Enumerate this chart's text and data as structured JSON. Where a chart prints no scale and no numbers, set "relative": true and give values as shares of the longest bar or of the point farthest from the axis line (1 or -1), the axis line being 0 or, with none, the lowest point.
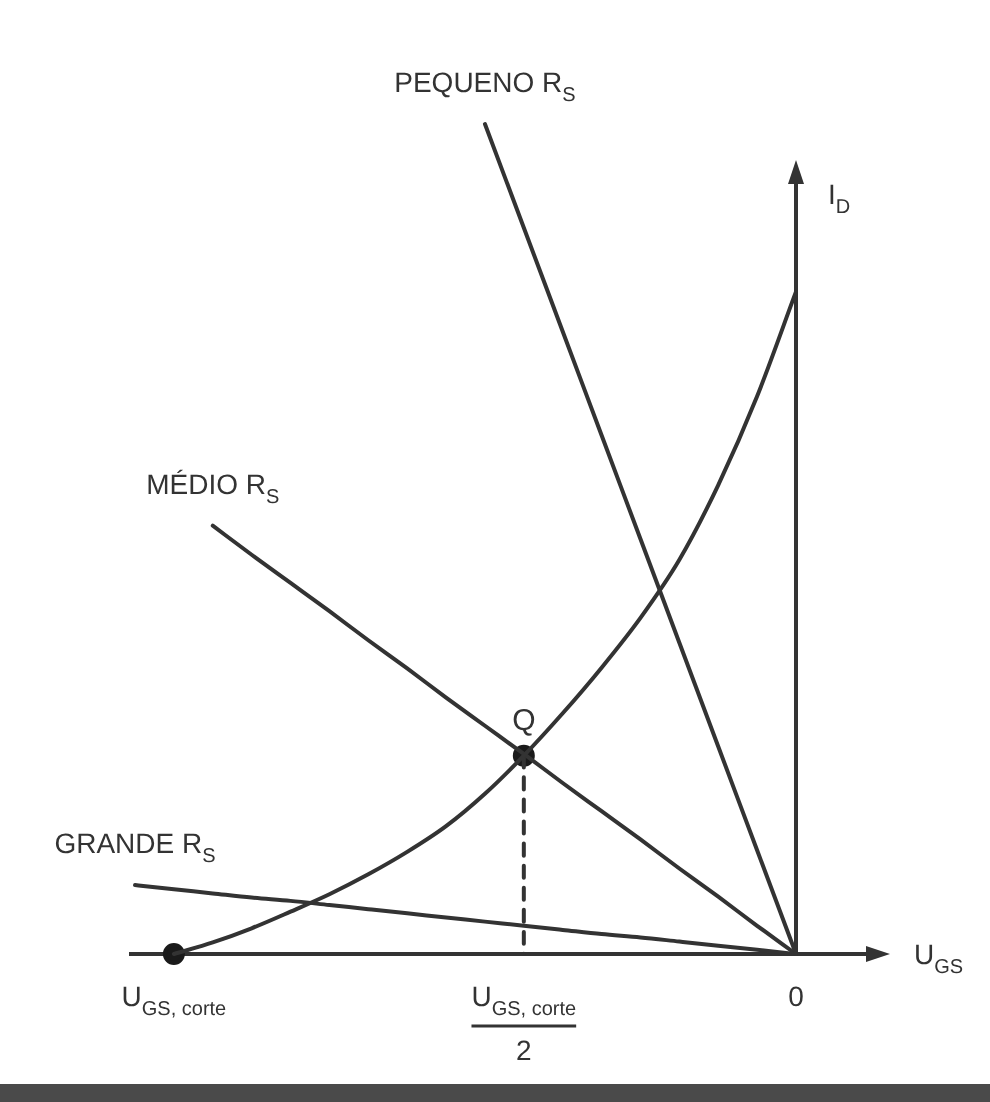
{
  "chart_data": {
    "type": "line",
    "relative": true,
    "xlabel": "U$_{GS}$",
    "ylabel": "I$_{D}$",
    "categories": [
      null,
      "U$_{GS, corte}$",
      null,
      null,
      null,
      null,
      null,
      null,
      null,
      null,
      "U$_{GS, corte}$\n2",
      null,
      null,
      null,
      null,
      null,
      null,
      "0"
    ],
    "series": [
      {
        "color": "#333333",
        "values": [
          null,
          0,
          0.014,
          0.031,
          0.051,
          0.072,
          0.096,
          0.123,
          0.154,
          0.193,
          0.239,
          0.29,
          0.345,
          0.405,
          0.475,
          0.565,
          0.672,
          0.798
        ]
      },
      {
        "name": "PEQUENO R$_{S}$",
        "color": "#333333",
        "values": [
          null,
          null,
          null,
          null,
          null,
          null,
          null,
          null,
          null,
          1,
          0.875,
          0.75,
          0.625,
          0.5,
          0.375,
          0.25,
          0.125,
          0
        ]
      },
      {
        "name": "MÉDIO R$_{S}$",
        "color": "#333333",
        "values": [
          null,
          null,
          0.516,
          0.481,
          0.447,
          0.413,
          0.378,
          0.344,
          0.309,
          0.275,
          0.241,
          0.206,
          0.172,
          0.138,
          0.103,
          0.069,
          0.034,
          0
        ]
      },
      {
        "name": "GRANDE R$_{S}$",
        "color": "#333333",
        "values": [
          0.083,
          0.078,
          0.073,
          0.068,
          0.064,
          0.059,
          0.054,
          0.049,
          0.044,
          0.039,
          0.034,
          0.029,
          0.024,
          0.02,
          0.015,
          0.01,
          0.005,
          0
        ]
      },
      {
        "line_style": "dashed",
        "color": "#333333",
        "x": [
          "U$_{GS, corte}$\n2",
          "U$_{GS, corte}$\n2"
        ],
        "values": [
          0.239,
          0
        ]
      },
      {
        "type": "scatter",
        "marker": "circle",
        "color": "#1a1a1a",
        "values": [
          null,
          0,
          null,
          null,
          null,
          null,
          null,
          null,
          null,
          null,
          0.239,
          null,
          null,
          null,
          null,
          null,
          null,
          null
        ]
      }
    ],
    "annotations": [
      {
        "text": "Q",
        "x": "U$_{GS, corte}$\n2",
        "y": 0.239
      }
    ]
  }
}
